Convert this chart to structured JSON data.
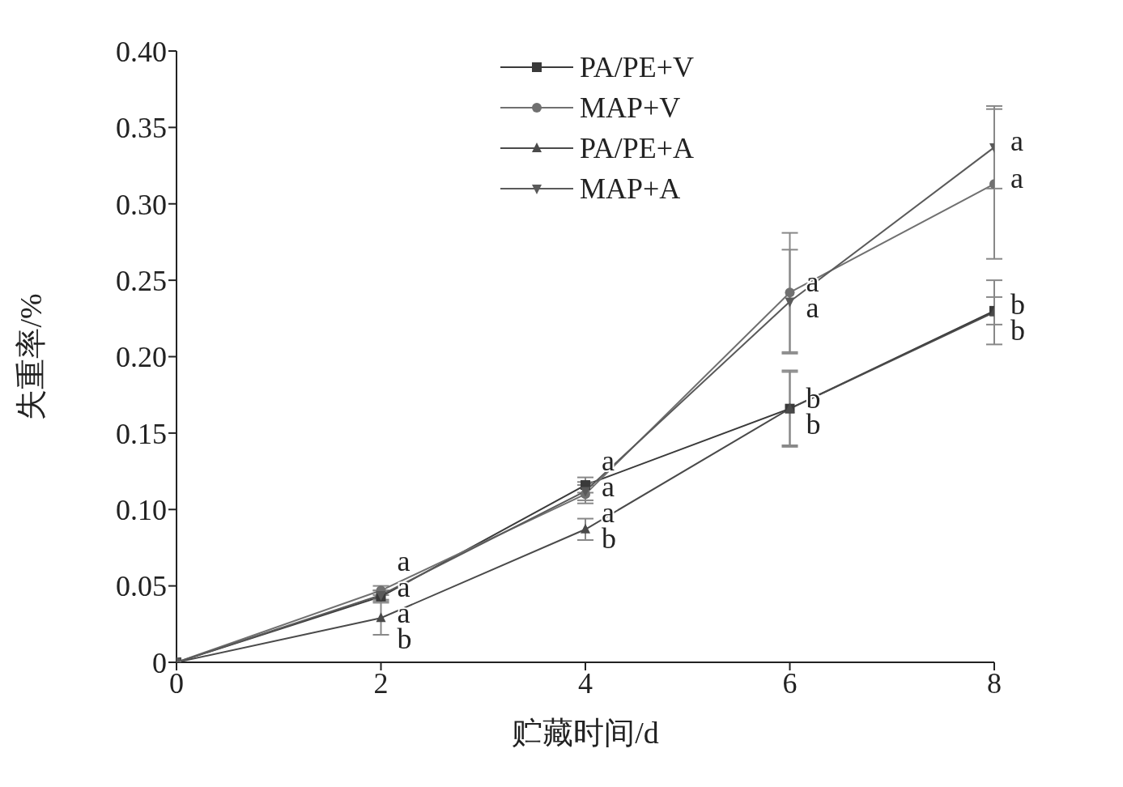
{
  "chart_data": {
    "type": "line",
    "xlabel": "贮藏时间/d",
    "ylabel": "失重率/%",
    "x": [
      0,
      2,
      4,
      6,
      8
    ],
    "xlim": [
      0,
      8
    ],
    "xticks": [
      0,
      2,
      4,
      6,
      8
    ],
    "ylim": [
      0,
      0.4
    ],
    "yticks": [
      {
        "value": 0,
        "label": "0"
      },
      {
        "value": 0.05,
        "label": "0.05"
      },
      {
        "value": 0.1,
        "label": "0.10"
      },
      {
        "value": 0.15,
        "label": "0.15"
      },
      {
        "value": 0.2,
        "label": "0.20"
      },
      {
        "value": 0.25,
        "label": "0.25"
      },
      {
        "value": 0.3,
        "label": "0.30"
      },
      {
        "value": 0.35,
        "label": "0.35"
      },
      {
        "value": 0.4,
        "label": "0.40"
      }
    ],
    "grid": false,
    "legend": "top",
    "line_style": "solid",
    "series": [
      {
        "name": "PA/PE+V",
        "color": "#3a3a3a",
        "marker": "square",
        "values": [
          0,
          0.043,
          0.116,
          0.166,
          0.23
        ],
        "errors": [
          null,
          0.004,
          0.005,
          0.025,
          0.009
        ]
      },
      {
        "name": "MAP+V",
        "color": "#707070",
        "marker": "circle",
        "values": [
          0,
          0.047,
          0.11,
          0.242,
          0.313
        ],
        "errors": [
          null,
          0.003,
          0.006,
          0.039,
          0.049
        ]
      },
      {
        "name": "PA/PE+A",
        "color": "#4a4a4a",
        "marker": "triangle",
        "values": [
          0,
          0.029,
          0.087,
          0.166,
          0.229
        ],
        "errors": [
          null,
          0.011,
          0.007,
          0.024,
          0.021
        ]
      },
      {
        "name": "MAP+A",
        "color": "#5a5a5a",
        "marker": "triangle-down",
        "values": [
          0,
          0.044,
          0.112,
          0.236,
          0.337
        ],
        "errors": [
          null,
          0.003,
          0.006,
          0.034,
          0.027
        ]
      }
    ],
    "annotations": [
      {
        "text": "a",
        "x": 2,
        "y": 0.043
      },
      {
        "text": "a",
        "x": 2,
        "y": 0.044
      },
      {
        "text": "a",
        "x": 2,
        "y": 0.047
      },
      {
        "text": "b",
        "x": 2,
        "y": 0.029
      },
      {
        "text": "a",
        "x": 4,
        "y": 0.11
      },
      {
        "text": "a",
        "x": 4,
        "y": 0.112
      },
      {
        "text": "a",
        "x": 4,
        "y": 0.116
      },
      {
        "text": "b",
        "x": 4,
        "y": 0.087
      },
      {
        "text": "a",
        "x": 6,
        "y": 0.242
      },
      {
        "text": "a",
        "x": 6,
        "y": 0.236
      },
      {
        "text": "b",
        "x": 6,
        "y": 0.166
      },
      {
        "text": "b",
        "x": 6,
        "y": 0.166
      },
      {
        "text": "a",
        "x": 8,
        "y": 0.337
      },
      {
        "text": "a",
        "x": 8,
        "y": 0.313
      },
      {
        "text": "b",
        "x": 8,
        "y": 0.23
      },
      {
        "text": "b",
        "x": 8,
        "y": 0.229
      }
    ]
  }
}
